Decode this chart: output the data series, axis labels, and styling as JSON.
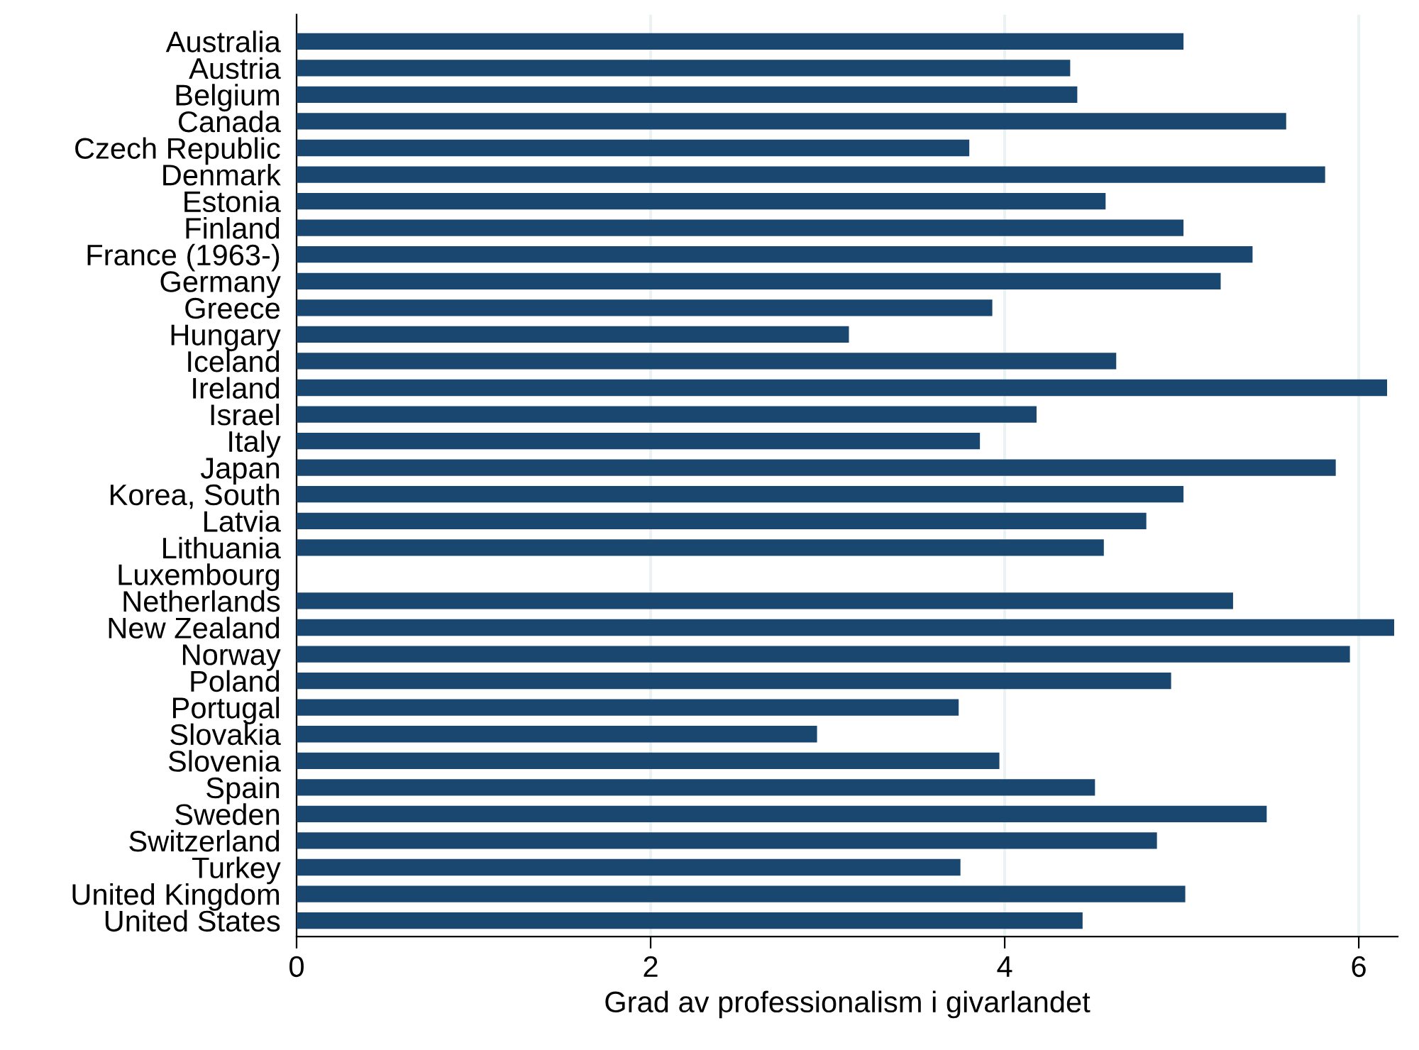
{
  "chart_data": {
    "type": "bar",
    "orientation": "horizontal",
    "xlabel": "Grad av professionalism i givarlandet",
    "categories": [
      "Australia",
      "Austria",
      "Belgium",
      "Canada",
      "Czech Republic",
      "Denmark",
      "Estonia",
      "Finland",
      "France (1963-)",
      "Germany",
      "Greece",
      "Hungary",
      "Iceland",
      "Ireland",
      "Israel",
      "Italy",
      "Japan",
      "Korea, South",
      "Latvia",
      "Lithuania",
      "Luxembourg",
      "Netherlands",
      "New Zealand",
      "Norway",
      "Poland",
      "Portugal",
      "Slovakia",
      "Slovenia",
      "Spain",
      "Sweden",
      "Switzerland",
      "Turkey",
      "United Kingdom",
      "United States"
    ],
    "values": [
      5.01,
      4.37,
      4.41,
      5.59,
      3.8,
      5.81,
      4.57,
      5.01,
      5.4,
      5.22,
      3.93,
      3.12,
      4.63,
      6.16,
      4.18,
      3.86,
      5.87,
      5.01,
      4.8,
      4.56,
      null,
      5.29,
      6.2,
      5.95,
      4.94,
      3.74,
      2.94,
      3.97,
      4.51,
      5.48,
      4.86,
      3.75,
      5.02,
      4.44
    ],
    "color": "#1a476f",
    "xlim": [
      0,
      6.22
    ],
    "xticks": [
      0,
      2,
      4,
      6
    ],
    "grid": "x"
  }
}
